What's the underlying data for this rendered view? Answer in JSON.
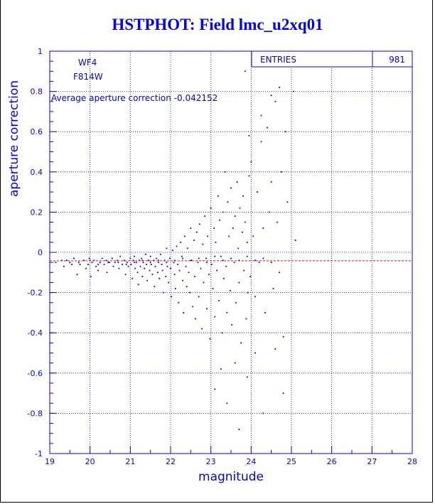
{
  "title": "HSTPHOT: Field lmc_u2xq01",
  "colors": {
    "axis": "#0000ff",
    "grid": "#0000ff",
    "points": "#0000ff",
    "meanline": "#ff0000"
  },
  "stats": {
    "label": "ENTRIES",
    "value": "981"
  },
  "labels": {
    "chip": "WF4",
    "filter": "F814W",
    "average": "Average aperture correction -0.042152"
  },
  "chart_data": {
    "type": "scatter",
    "title": "HSTPHOT: Field lmc_u2xq01",
    "xlabel": "magnitude",
    "ylabel": "aperture correction",
    "xlim": [
      19,
      28
    ],
    "ylim": [
      -1,
      1
    ],
    "x_ticks": [
      "19",
      "20",
      "21",
      "22",
      "23",
      "24",
      "25",
      "26",
      "27",
      "28"
    ],
    "y_ticks": [
      "-1",
      "-0.8",
      "-0.6",
      "-0.4",
      "-0.2",
      "0",
      "0.2",
      "0.4",
      "0.6",
      "0.8",
      "1"
    ],
    "grid": true,
    "entries": 981,
    "mean_line_y": -0.042152,
    "series": [
      {
        "points": [
          [
            19.15,
            -0.05
          ],
          [
            19.3,
            -0.04
          ],
          [
            19.35,
            -0.07
          ],
          [
            19.42,
            -0.04
          ],
          [
            19.55,
            -0.06
          ],
          [
            19.6,
            -0.03
          ],
          [
            19.68,
            -0.11
          ],
          [
            19.72,
            -0.05
          ],
          [
            19.85,
            -0.04
          ],
          [
            19.9,
            -0.08
          ],
          [
            19.95,
            -0.06
          ],
          [
            19.98,
            -0.03
          ],
          [
            20.02,
            -0.12
          ],
          [
            20.05,
            -0.05
          ],
          [
            20.1,
            -0.04
          ],
          [
            20.15,
            -0.07
          ],
          [
            20.2,
            -0.09
          ],
          [
            20.25,
            -0.05
          ],
          [
            20.3,
            -0.03
          ],
          [
            20.35,
            -0.06
          ],
          [
            20.4,
            -0.04
          ],
          [
            20.42,
            -0.1
          ],
          [
            20.48,
            -0.05
          ],
          [
            20.55,
            -0.03
          ],
          [
            20.58,
            -0.07
          ],
          [
            20.62,
            -0.05
          ],
          [
            20.68,
            -0.04
          ],
          [
            20.72,
            -0.08
          ],
          [
            20.75,
            -0.02
          ],
          [
            20.8,
            -0.06
          ],
          [
            20.85,
            -0.04
          ],
          [
            20.88,
            -0.11
          ],
          [
            20.92,
            -0.05
          ],
          [
            20.95,
            -0.07
          ],
          [
            21.0,
            -0.03
          ],
          [
            21.02,
            -0.06
          ],
          [
            21.05,
            -0.13
          ],
          [
            21.08,
            -0.04
          ],
          [
            21.1,
            -0.02
          ],
          [
            21.12,
            -0.08
          ],
          [
            21.15,
            -0.05
          ],
          [
            21.18,
            -0.1
          ],
          [
            21.2,
            -0.16
          ],
          [
            21.22,
            -0.04
          ],
          [
            21.25,
            -0.07
          ],
          [
            21.28,
            -0.03
          ],
          [
            21.3,
            -0.12
          ],
          [
            21.32,
            -0.05
          ],
          [
            21.35,
            -0.08
          ],
          [
            21.38,
            -0.01
          ],
          [
            21.4,
            -0.06
          ],
          [
            21.42,
            -0.14
          ],
          [
            21.45,
            -0.04
          ],
          [
            21.48,
            -0.09
          ],
          [
            21.5,
            -0.02
          ],
          [
            21.52,
            -0.06
          ],
          [
            21.55,
            -0.11
          ],
          [
            21.58,
            -0.04
          ],
          [
            21.6,
            -0.17
          ],
          [
            21.62,
            -0.07
          ],
          [
            21.65,
            -0.03
          ],
          [
            21.68,
            -0.1
          ],
          [
            21.7,
            -0.05
          ],
          [
            21.72,
            -0.13
          ],
          [
            21.75,
            -0.01
          ],
          [
            21.78,
            -0.06
          ],
          [
            21.8,
            -0.09
          ],
          [
            21.82,
            -0.2
          ],
          [
            21.85,
            -0.04
          ],
          [
            21.88,
            -0.12
          ],
          [
            21.9,
            0.02
          ],
          [
            21.92,
            -0.07
          ],
          [
            21.95,
            -0.15
          ],
          [
            21.98,
            -0.03
          ],
          [
            22.0,
            -0.08
          ],
          [
            22.02,
            -0.22
          ],
          [
            22.05,
            0.01
          ],
          [
            22.08,
            -0.05
          ],
          [
            22.1,
            -0.11
          ],
          [
            22.12,
            -0.18
          ],
          [
            22.15,
            0.03
          ],
          [
            22.18,
            -0.06
          ],
          [
            22.2,
            -0.25
          ],
          [
            22.22,
            -0.09
          ],
          [
            22.25,
            0.05
          ],
          [
            22.28,
            -0.02
          ],
          [
            22.3,
            -0.14
          ],
          [
            22.32,
            -0.3
          ],
          [
            22.35,
            0.08
          ],
          [
            22.38,
            -0.07
          ],
          [
            22.4,
            -0.17
          ],
          [
            22.42,
            0.02
          ],
          [
            22.45,
            -0.1
          ],
          [
            22.48,
            -0.2
          ],
          [
            22.5,
            0.12
          ],
          [
            22.52,
            -0.04
          ],
          [
            22.55,
            -0.27
          ],
          [
            22.58,
            0.06
          ],
          [
            22.6,
            -0.12
          ],
          [
            22.62,
            -0.33
          ],
          [
            22.65,
            0.1
          ],
          [
            22.68,
            -0.05
          ],
          [
            22.7,
            -0.22
          ],
          [
            22.72,
            0.14
          ],
          [
            22.75,
            -0.08
          ],
          [
            22.78,
            -0.38
          ],
          [
            22.8,
            0.04
          ],
          [
            22.82,
            -0.15
          ],
          [
            22.85,
            0.18
          ],
          [
            22.88,
            -0.03
          ],
          [
            22.9,
            -0.28
          ],
          [
            22.92,
            0.08
          ],
          [
            22.95,
            -0.11
          ],
          [
            22.98,
            -0.43
          ],
          [
            23.0,
            0.22
          ],
          [
            23.02,
            -0.06
          ],
          [
            23.05,
            -0.18
          ],
          [
            23.08,
            0.12
          ],
          [
            23.1,
            -0.32
          ],
          [
            23.12,
            0.05
          ],
          [
            23.15,
            -0.09
          ],
          [
            23.18,
            0.28
          ],
          [
            23.2,
            -0.24
          ],
          [
            23.22,
            0.16
          ],
          [
            23.25,
            -0.02
          ],
          [
            23.28,
            -0.4
          ],
          [
            23.3,
            0.2
          ],
          [
            23.32,
            -0.13
          ],
          [
            23.35,
            0.4
          ],
          [
            23.38,
            -0.07
          ],
          [
            23.4,
            -0.3
          ],
          [
            23.42,
            0.25
          ],
          [
            23.45,
            0.08
          ],
          [
            23.48,
            -0.19
          ],
          [
            23.5,
            0.32
          ],
          [
            23.52,
            -0.36
          ],
          [
            23.55,
            0.12
          ],
          [
            23.58,
            -0.05
          ],
          [
            23.6,
            0.18
          ],
          [
            23.62,
            -0.25
          ],
          [
            23.65,
            0.35
          ],
          [
            23.68,
            0.02
          ],
          [
            23.7,
            -0.15
          ],
          [
            23.72,
            0.22
          ],
          [
            23.75,
            -0.45
          ],
          [
            23.78,
            0.1
          ],
          [
            23.8,
            0.28
          ],
          [
            23.82,
            -0.09
          ],
          [
            23.85,
            0.15
          ],
          [
            23.88,
            -0.33
          ],
          [
            23.9,
            0.05
          ],
          [
            23.92,
            -0.2
          ],
          [
            23.95,
            0.38
          ],
          [
            23.98,
            -0.12
          ],
          [
            24.0,
            0.45
          ],
          [
            24.05,
            0.08
          ],
          [
            24.1,
            -0.22
          ],
          [
            24.15,
            0.3
          ],
          [
            24.2,
            -0.05
          ],
          [
            24.25,
            0.55
          ],
          [
            24.3,
            0.12
          ],
          [
            24.35,
            -0.3
          ],
          [
            24.4,
            0.62
          ],
          [
            24.45,
            0.2
          ],
          [
            24.5,
            0.35
          ],
          [
            24.55,
            -0.18
          ],
          [
            24.6,
            0.75
          ],
          [
            24.65,
            0.15
          ],
          [
            24.7,
            -0.1
          ],
          [
            24.75,
            0.4
          ],
          [
            24.8,
            -0.42
          ],
          [
            24.85,
            0.6
          ],
          [
            24.9,
            0.25
          ],
          [
            25.05,
            0.8
          ],
          [
            25.1,
            0.06
          ],
          [
            23.1,
            -0.68
          ],
          [
            23.25,
            -0.58
          ],
          [
            23.4,
            -0.75
          ],
          [
            23.6,
            -0.55
          ],
          [
            23.7,
            -0.88
          ],
          [
            23.9,
            -0.62
          ],
          [
            24.1,
            -0.5
          ],
          [
            24.3,
            -0.8
          ],
          [
            24.6,
            -0.48
          ],
          [
            24.8,
            -0.7
          ],
          [
            23.85,
            0.9
          ],
          [
            24.5,
            0.78
          ],
          [
            24.7,
            0.82
          ],
          [
            23.95,
            0.58
          ],
          [
            24.25,
            0.68
          ],
          [
            19.5,
            -0.05
          ],
          [
            19.75,
            -0.06
          ],
          [
            20.0,
            -0.04
          ],
          [
            20.2,
            -0.06
          ],
          [
            20.45,
            -0.05
          ],
          [
            20.7,
            -0.05
          ],
          [
            20.9,
            -0.06
          ],
          [
            21.1,
            -0.05
          ],
          [
            21.3,
            -0.04
          ],
          [
            21.5,
            -0.05
          ],
          [
            21.7,
            -0.04
          ],
          [
            21.9,
            -0.05
          ],
          [
            22.1,
            -0.04
          ],
          [
            22.3,
            -0.03
          ],
          [
            22.5,
            -0.04
          ],
          [
            22.7,
            -0.03
          ],
          [
            22.9,
            -0.05
          ],
          [
            23.1,
            -0.02
          ],
          [
            23.3,
            -0.04
          ],
          [
            23.5,
            -0.03
          ],
          [
            23.7,
            -0.04
          ],
          [
            23.9,
            -0.02
          ],
          [
            24.1,
            -0.04
          ],
          [
            24.3,
            -0.03
          ],
          [
            24.5,
            -0.05
          ]
        ]
      }
    ]
  }
}
